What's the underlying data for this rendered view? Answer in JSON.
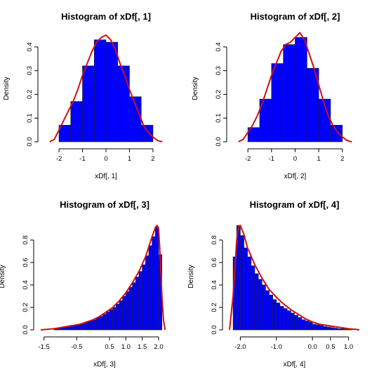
{
  "colors": {
    "bar_fill": "#0000ff",
    "bar_stroke": "#222222",
    "density_line": "#cc1111",
    "axis": "#000000"
  },
  "chart_data": [
    {
      "type": "histogram",
      "title": "Histogram of xDf[, 1]",
      "xlabel": "xDf[, 1]",
      "ylabel": "Density",
      "xlim": [
        -2.6,
        2.6
      ],
      "ylim": [
        0,
        0.45
      ],
      "xticks": [
        -2,
        -1,
        0,
        1,
        2
      ],
      "xtick_labels": [
        "-2",
        "-1",
        "0",
        "1",
        "2"
      ],
      "yticks": [
        0,
        0.1,
        0.2,
        0.3,
        0.4
      ],
      "ytick_labels": [
        "0.0",
        "0.1",
        "0.2",
        "0.3",
        "0.4"
      ],
      "bins": [
        -2,
        -1.5,
        -1,
        -0.5,
        0,
        0.5,
        1,
        1.5,
        2
      ],
      "values": [
        0.07,
        0.17,
        0.32,
        0.43,
        0.42,
        0.32,
        0.19,
        0.07
      ],
      "density": {
        "x": [
          -2.4,
          -2.2,
          -2.0,
          -1.8,
          -1.6,
          -1.4,
          -1.2,
          -1.0,
          -0.8,
          -0.6,
          -0.4,
          -0.2,
          0.0,
          0.2,
          0.4,
          0.6,
          0.8,
          1.0,
          1.2,
          1.4,
          1.6,
          1.8,
          2.0,
          2.2,
          2.4
        ],
        "y": [
          0.0,
          0.01,
          0.05,
          0.09,
          0.13,
          0.17,
          0.22,
          0.28,
          0.33,
          0.38,
          0.42,
          0.44,
          0.45,
          0.43,
          0.39,
          0.33,
          0.28,
          0.22,
          0.17,
          0.12,
          0.07,
          0.04,
          0.02,
          0.005,
          0.0
        ]
      }
    },
    {
      "type": "histogram",
      "title": "Histogram of xDf[, 2]",
      "xlabel": "xDf[, 2]",
      "ylabel": "Density",
      "xlim": [
        -2.6,
        2.6
      ],
      "ylim": [
        0,
        0.45
      ],
      "xticks": [
        -2,
        -1,
        0,
        1,
        2
      ],
      "xtick_labels": [
        "-2",
        "-1",
        "0",
        "1",
        "2"
      ],
      "yticks": [
        0,
        0.1,
        0.2,
        0.3,
        0.4
      ],
      "ytick_labels": [
        "0.0",
        "0.1",
        "0.2",
        "0.3",
        "0.4"
      ],
      "bins": [
        -2,
        -1.5,
        -1,
        -0.5,
        0,
        0.5,
        1,
        1.5,
        2
      ],
      "values": [
        0.06,
        0.18,
        0.33,
        0.41,
        0.44,
        0.31,
        0.18,
        0.07
      ],
      "density": {
        "x": [
          -2.4,
          -2.2,
          -2.0,
          -1.8,
          -1.6,
          -1.4,
          -1.2,
          -1.0,
          -0.8,
          -0.6,
          -0.4,
          -0.2,
          0.0,
          0.2,
          0.4,
          0.6,
          0.8,
          1.0,
          1.2,
          1.4,
          1.6,
          1.8,
          2.0,
          2.2,
          2.4
        ],
        "y": [
          0.0,
          0.01,
          0.04,
          0.07,
          0.11,
          0.16,
          0.22,
          0.28,
          0.33,
          0.38,
          0.41,
          0.42,
          0.44,
          0.46,
          0.43,
          0.37,
          0.31,
          0.24,
          0.17,
          0.11,
          0.07,
          0.04,
          0.02,
          0.005,
          0.0
        ]
      }
    },
    {
      "type": "histogram",
      "title": "Histogram of xDf[, 3]",
      "xlabel": "xDf[, 3]",
      "ylabel": "Density",
      "xlim": [
        -1.6,
        2.3
      ],
      "ylim": [
        0,
        0.95
      ],
      "xticks": [
        -1.5,
        -0.5,
        0.5,
        1.0,
        1.5,
        2.0
      ],
      "xtick_labels": [
        "-1.5",
        "-0.5",
        "0.5",
        "1.0",
        "1.5",
        "2.0"
      ],
      "yticks": [
        0,
        0.2,
        0.4,
        0.6,
        0.8
      ],
      "ytick_labels": [
        "0.0",
        "0.2",
        "0.4",
        "0.6",
        "0.8"
      ],
      "bins": [
        -1.2,
        -1.0,
        -0.9,
        -0.8,
        -0.7,
        -0.6,
        -0.5,
        -0.4,
        -0.3,
        -0.2,
        -0.1,
        0.0,
        0.1,
        0.2,
        0.3,
        0.4,
        0.5,
        0.6,
        0.7,
        0.8,
        0.9,
        1.0,
        1.1,
        1.2,
        1.3,
        1.4,
        1.5,
        1.6,
        1.7,
        1.8,
        1.9,
        2.0,
        2.1
      ],
      "values": [
        0.01,
        0.02,
        0.03,
        0.03,
        0.04,
        0.04,
        0.05,
        0.05,
        0.06,
        0.07,
        0.08,
        0.09,
        0.11,
        0.12,
        0.14,
        0.16,
        0.18,
        0.2,
        0.23,
        0.26,
        0.3,
        0.34,
        0.38,
        0.42,
        0.47,
        0.52,
        0.58,
        0.66,
        0.75,
        0.83,
        0.92,
        0.67
      ],
      "density": {
        "x": [
          -1.6,
          -1.2,
          -1.0,
          -0.8,
          -0.6,
          -0.4,
          -0.2,
          0.0,
          0.2,
          0.4,
          0.6,
          0.8,
          1.0,
          1.2,
          1.4,
          1.6,
          1.7,
          1.8,
          1.9,
          1.95,
          2.0,
          2.05,
          2.1,
          2.15,
          2.2
        ],
        "y": [
          0.0,
          0.01,
          0.02,
          0.03,
          0.04,
          0.05,
          0.07,
          0.09,
          0.12,
          0.16,
          0.2,
          0.26,
          0.33,
          0.42,
          0.52,
          0.65,
          0.74,
          0.83,
          0.91,
          0.93,
          0.9,
          0.65,
          0.3,
          0.08,
          0.0
        ]
      }
    },
    {
      "type": "histogram",
      "title": "Histogram of xDf[, 4]",
      "xlabel": "xDf[, 4]",
      "ylabel": "Density",
      "xlim": [
        -2.3,
        1.3
      ],
      "ylim": [
        0,
        0.95
      ],
      "xticks": [
        -2.0,
        -1.0,
        0.0,
        0.5,
        1.0
      ],
      "xtick_labels": [
        "-2.0",
        "-1.0",
        "0.0",
        "0.5",
        "1.0"
      ],
      "yticks": [
        0,
        0.2,
        0.4,
        0.6,
        0.8
      ],
      "ytick_labels": [
        "0.0",
        "0.2",
        "0.4",
        "0.6",
        "0.8"
      ],
      "bins": [
        -2.2,
        -2.1,
        -2.0,
        -1.9,
        -1.8,
        -1.7,
        -1.6,
        -1.5,
        -1.4,
        -1.3,
        -1.2,
        -1.1,
        -1.0,
        -0.9,
        -0.8,
        -0.7,
        -0.6,
        -0.5,
        -0.4,
        -0.3,
        -0.2,
        -0.1,
        0.0,
        0.1,
        0.2,
        0.3,
        0.4,
        0.5,
        0.6,
        0.7,
        0.8,
        0.9,
        1.0,
        1.1
      ],
      "values": [
        0.65,
        0.93,
        0.84,
        0.73,
        0.65,
        0.57,
        0.5,
        0.45,
        0.4,
        0.35,
        0.31,
        0.27,
        0.24,
        0.21,
        0.19,
        0.17,
        0.15,
        0.13,
        0.11,
        0.09,
        0.08,
        0.07,
        0.05,
        0.045,
        0.04,
        0.03,
        0.025,
        0.02,
        0.015,
        0.01,
        0.01,
        0.005,
        0.005
      ],
      "density": {
        "x": [
          -2.3,
          -2.2,
          -2.1,
          -2.05,
          -2.0,
          -1.9,
          -1.8,
          -1.6,
          -1.4,
          -1.2,
          -1.0,
          -0.8,
          -0.6,
          -0.4,
          -0.2,
          0.0,
          0.2,
          0.4,
          0.6,
          0.8,
          1.0,
          1.2,
          1.3
        ],
        "y": [
          0.0,
          0.3,
          0.8,
          0.92,
          0.93,
          0.85,
          0.73,
          0.58,
          0.46,
          0.36,
          0.29,
          0.23,
          0.18,
          0.14,
          0.1,
          0.07,
          0.05,
          0.04,
          0.03,
          0.02,
          0.01,
          0.005,
          0.0
        ]
      }
    }
  ]
}
